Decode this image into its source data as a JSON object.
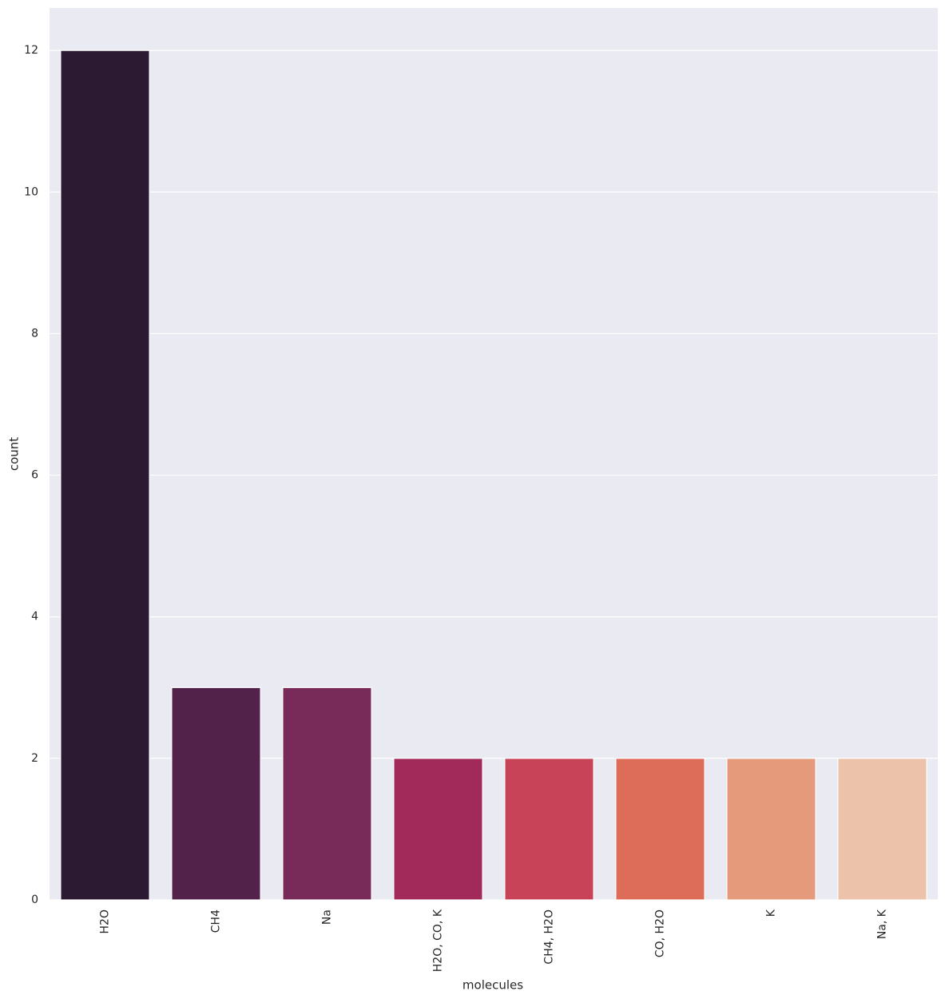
{
  "chart_data": {
    "type": "bar",
    "xlabel": "molecules",
    "ylabel": "count",
    "categories": [
      "H2O",
      "CH4",
      "Na",
      "H2O, CO, K",
      "CH4, H2O",
      "CO, H2O",
      "K",
      "Na, K"
    ],
    "values": [
      12,
      3,
      3,
      2,
      2,
      2,
      2,
      2
    ],
    "colors": [
      "#2b1a31",
      "#52224a",
      "#782a58",
      "#a22a5b",
      "#c84357",
      "#dd6d59",
      "#e59b7b",
      "#ecc2aa"
    ],
    "ylim": [
      0,
      12.6
    ],
    "yticks": [
      0,
      2,
      4,
      6,
      8,
      10,
      12
    ],
    "grid": true
  }
}
